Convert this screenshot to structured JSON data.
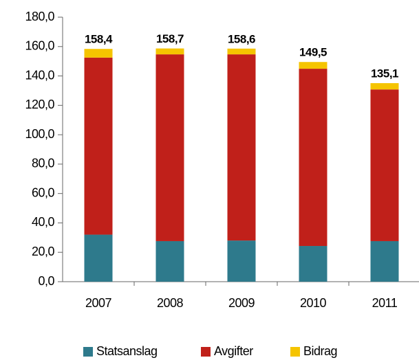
{
  "chart_data": {
    "type": "stacked_bar",
    "categories": [
      "2007",
      "2008",
      "2009",
      "2010",
      "2011"
    ],
    "series": [
      {
        "name": "Statsanslag",
        "color": "#2e7a8c",
        "values": [
          32.0,
          27.6,
          28.0,
          24.3,
          27.6
        ]
      },
      {
        "name": "Avgifter",
        "color": "#c0201a",
        "values": [
          120.5,
          127.1,
          126.7,
          120.6,
          103.2
        ]
      },
      {
        "name": "Bidrag",
        "color": "#f5c400",
        "values": [
          5.9,
          4.0,
          3.9,
          4.6,
          4.3
        ]
      }
    ],
    "totals": [
      158.4,
      158.7,
      158.6,
      149.5,
      135.1
    ],
    "total_labels": [
      "158,4",
      "158,7",
      "158,6",
      "149,5",
      "135,1"
    ],
    "ylim": [
      0,
      180
    ],
    "yticks": [
      {
        "value": 0,
        "label": "0,0"
      },
      {
        "value": 20,
        "label": "20,0"
      },
      {
        "value": 40,
        "label": "40,0"
      },
      {
        "value": 60,
        "label": "60,0"
      },
      {
        "value": 80,
        "label": "80,0"
      },
      {
        "value": 100,
        "label": "100,0"
      },
      {
        "value": 120,
        "label": "120,0"
      },
      {
        "value": 140,
        "label": "140,0"
      },
      {
        "value": 160,
        "label": "160,0"
      },
      {
        "value": 180,
        "label": "180,0"
      }
    ],
    "grid": false
  }
}
